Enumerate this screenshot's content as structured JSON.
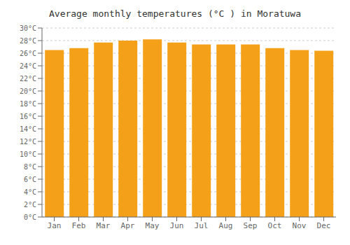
{
  "chart_data": {
    "type": "bar",
    "title": "Average monthly temperatures (°C ) in Moratuwa",
    "categories": [
      "Jan",
      "Feb",
      "Mar",
      "Apr",
      "May",
      "Jun",
      "Jul",
      "Aug",
      "Sep",
      "Oct",
      "Nov",
      "Dec"
    ],
    "values": [
      26.5,
      26.8,
      27.7,
      28.0,
      28.2,
      27.7,
      27.4,
      27.4,
      27.4,
      26.8,
      26.5,
      26.4
    ],
    "color": "#F4A019",
    "ylim": [
      0,
      30
    ],
    "yticks": [
      {
        "value": 0,
        "label": "0°C"
      },
      {
        "value": 2,
        "label": "2°C"
      },
      {
        "value": 4,
        "label": "4°C"
      },
      {
        "value": 6,
        "label": "6°C"
      },
      {
        "value": 8,
        "label": "8°C"
      },
      {
        "value": 10,
        "label": "10°C"
      },
      {
        "value": 12,
        "label": "12°C"
      },
      {
        "value": 14,
        "label": "14°C"
      },
      {
        "value": 16,
        "label": "16°C"
      },
      {
        "value": 18,
        "label": "18°C"
      },
      {
        "value": 20,
        "label": "20°C"
      },
      {
        "value": 22,
        "label": "22°C"
      },
      {
        "value": 24,
        "label": "24°C"
      },
      {
        "value": 26,
        "label": "26°C"
      },
      {
        "value": 28,
        "label": "28°C"
      },
      {
        "value": 30,
        "label": "30°C"
      }
    ],
    "grid": true
  }
}
